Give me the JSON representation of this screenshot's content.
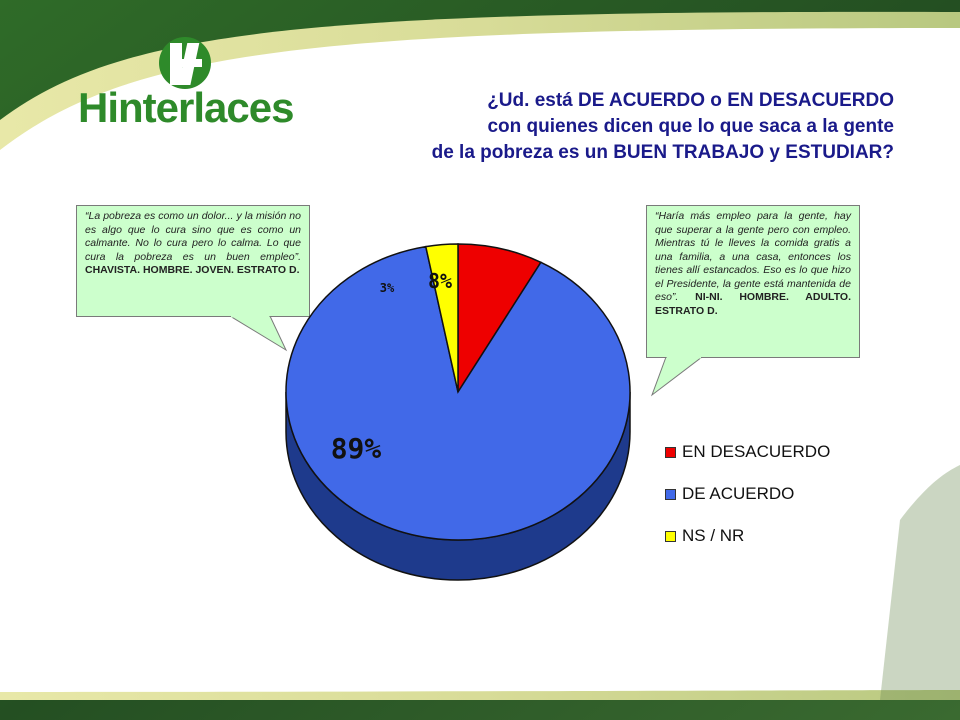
{
  "header": {
    "brand": "Hinterlaces",
    "title_lines": [
      "¿Ud. está DE ACUERDO o EN DESACUERDO",
      "con quienes dicen que lo que saca a la gente",
      "de la pobreza es un BUEN TRABAJO y ESTUDIAR?"
    ]
  },
  "callouts": {
    "left": {
      "quote": "“La pobreza es como un dolor... y la misión no es algo que lo cura sino que es como un calmante. No lo cura pero lo calma. Lo que cura la pobreza es un buen empleo”.",
      "tag": "CHAVISTA. HOMBRE. JOVEN. ESTRATO D."
    },
    "right": {
      "quote": "“Haría más empleo para la gente, hay que superar a la gente pero con empleo. Mientras tú le lleves la comida gratis a una familia, a una casa, entonces los tienes allí estancados. Eso es lo que hizo el Presidente, la gente está mantenida de eso”.",
      "tag": "NI-NI. HOMBRE. ADULTO. ESTRATO D."
    }
  },
  "colors": {
    "en_desacuerdo": "#ee0000",
    "de_acuerdo": "#4169e8",
    "ns_nr": "#ffff00",
    "title": "#1a1a8a"
  },
  "chart_data": {
    "type": "pie",
    "categories": [
      "EN DESACUERDO",
      "DE ACUERDO",
      "NS / NR"
    ],
    "values": [
      8,
      89,
      3
    ],
    "data_labels": [
      "8%",
      "89%",
      "3%"
    ],
    "legend": "right"
  }
}
